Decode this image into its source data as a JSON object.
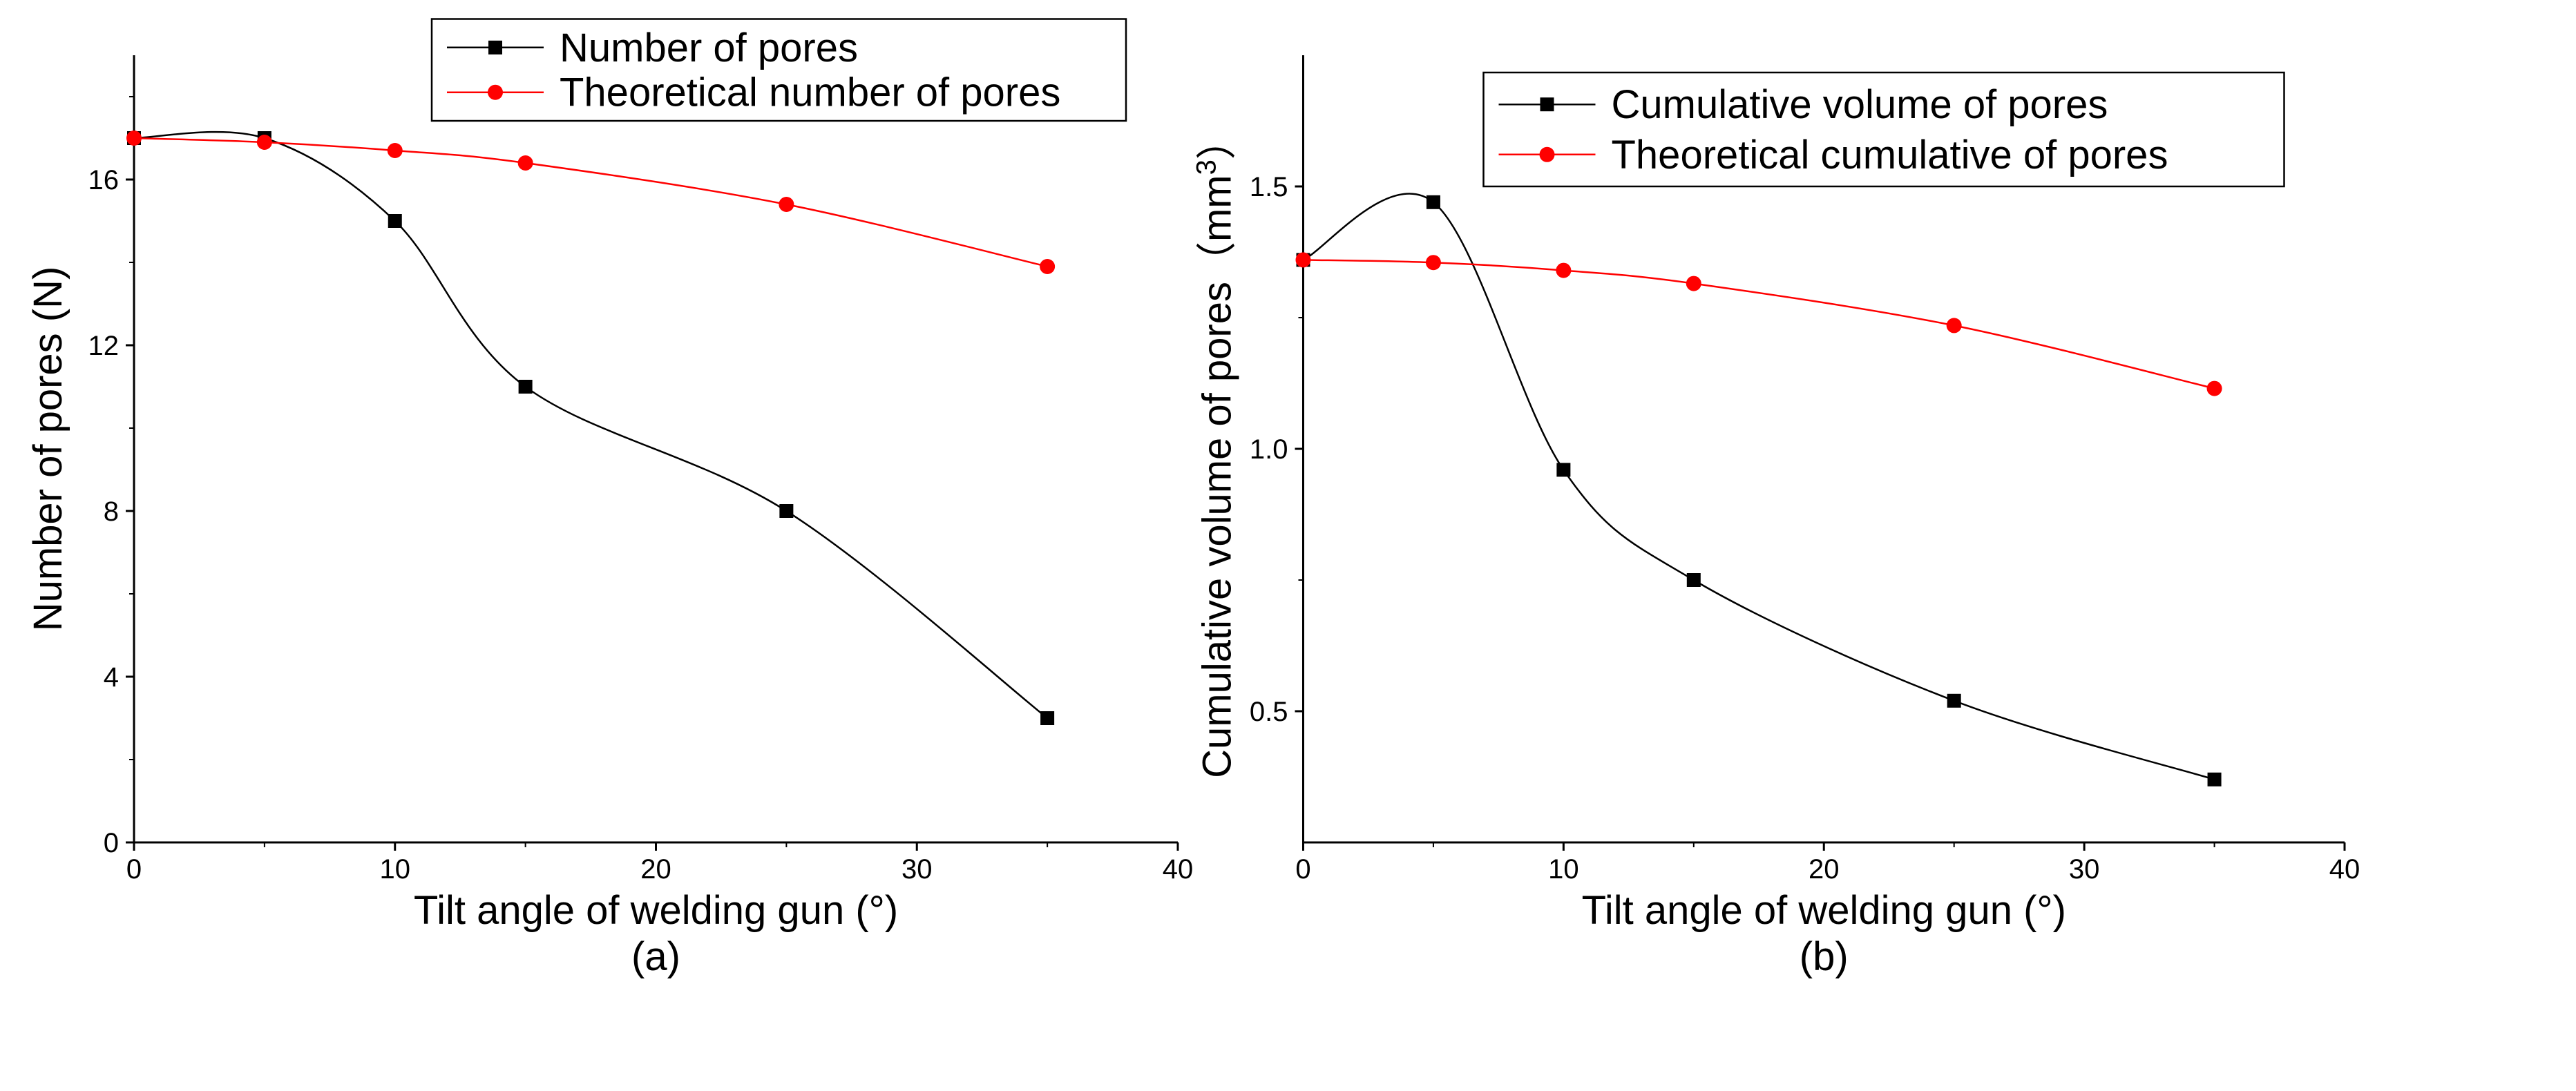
{
  "chart_data": [
    {
      "type": "line",
      "panel_label": "(a)",
      "xlabel": "Tilt angle of welding gun (°)",
      "ylabel": "Number of pores (N)",
      "xlim": [
        0,
        40
      ],
      "ylim": [
        0,
        19
      ],
      "xticks": [
        0,
        10,
        20,
        30,
        40
      ],
      "yticks": [
        0,
        4,
        8,
        12,
        16
      ],
      "legend_position": "top-right",
      "series": [
        {
          "name": "Number of pores",
          "color": "#000000",
          "marker": "square",
          "x": [
            0,
            5,
            10,
            15,
            25,
            35
          ],
          "y": [
            17,
            17,
            15,
            11,
            8,
            3
          ]
        },
        {
          "name": "Theoretical number of pores",
          "color": "#ff0000",
          "marker": "circle",
          "x": [
            0,
            5,
            10,
            15,
            25,
            35
          ],
          "y": [
            17,
            16.9,
            16.7,
            16.4,
            15.4,
            13.9
          ]
        }
      ]
    },
    {
      "type": "line",
      "panel_label": "(b)",
      "xlabel": "Tilt angle of welding gun (°)",
      "ylabel": "Cumulative  volume of pores",
      "ylabel_unit_open": "（mm",
      "ylabel_unit_exp": "3",
      "ylabel_unit_close": "）",
      "xlim": [
        0,
        40
      ],
      "ylim": [
        0.25,
        1.75
      ],
      "xticks": [
        0,
        10,
        20,
        30,
        40
      ],
      "yticks": [
        0.5,
        1.0,
        1.5
      ],
      "ytick_labels": [
        "0.5",
        "1.0",
        "1.5"
      ],
      "legend_position": "top-right",
      "series": [
        {
          "name": "Cumulative  volume of pores",
          "color": "#000000",
          "marker": "square",
          "x": [
            0,
            5,
            10,
            15,
            25,
            35
          ],
          "y": [
            1.36,
            1.47,
            0.96,
            0.75,
            0.52,
            0.37
          ]
        },
        {
          "name": "Theoretical cumulative of pores",
          "color": "#ff0000",
          "marker": "circle",
          "x": [
            0,
            5,
            10,
            15,
            25,
            35
          ],
          "y": [
            1.36,
            1.355,
            1.34,
            1.315,
            1.235,
            1.115
          ]
        }
      ]
    }
  ]
}
